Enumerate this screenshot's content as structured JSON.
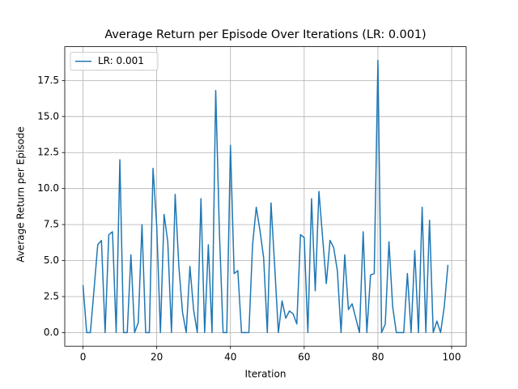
{
  "chart_data": {
    "type": "line",
    "title": "Average Return per Episode Over Iterations (LR: 0.001)",
    "x_label": "Iteration",
    "y_label": "Average Return per Episode",
    "x": [
      0,
      1,
      2,
      3,
      4,
      5,
      6,
      7,
      8,
      9,
      10,
      11,
      12,
      13,
      14,
      15,
      16,
      17,
      18,
      19,
      20,
      21,
      22,
      23,
      24,
      25,
      26,
      27,
      28,
      29,
      30,
      31,
      32,
      33,
      34,
      35,
      36,
      37,
      38,
      39,
      40,
      41,
      42,
      43,
      44,
      45,
      46,
      47,
      48,
      49,
      50,
      51,
      52,
      53,
      54,
      55,
      56,
      57,
      58,
      59,
      60,
      61,
      62,
      63,
      64,
      65,
      66,
      67,
      68,
      69,
      70,
      71,
      72,
      73,
      74,
      75,
      76,
      77,
      78,
      79,
      80,
      81,
      82,
      83,
      84,
      85,
      86,
      87,
      88,
      89,
      90,
      91,
      92,
      93,
      94,
      95,
      96,
      97,
      98,
      99
    ],
    "series": [
      {
        "name": "LR: 0.001",
        "color": "#1f77b4",
        "values": [
          3.3,
          0,
          0,
          3.0,
          6.1,
          6.4,
          0,
          6.8,
          7.0,
          0,
          12.0,
          0,
          0,
          5.4,
          0,
          0.7,
          7.5,
          0,
          0,
          11.4,
          7.4,
          0,
          8.2,
          6.3,
          0,
          9.6,
          4.6,
          1.4,
          0,
          4.6,
          1.6,
          0,
          9.3,
          0,
          6.1,
          0,
          16.8,
          7.0,
          0,
          0,
          13.0,
          4.1,
          4.3,
          0,
          0,
          0,
          6.1,
          8.7,
          7.1,
          5.2,
          0,
          9.0,
          4.6,
          0,
          2.2,
          1.0,
          1.5,
          1.3,
          0.6,
          6.8,
          6.6,
          0,
          9.3,
          2.9,
          9.8,
          6.6,
          3.4,
          6.4,
          5.9,
          4.3,
          0,
          5.4,
          1.6,
          2.0,
          1.0,
          0,
          7.0,
          0,
          4.0,
          4.1,
          18.9,
          0,
          0.6,
          6.3,
          1.8,
          0,
          0,
          0,
          4.1,
          0,
          5.7,
          0,
          8.7,
          0,
          7.8,
          0,
          0.8,
          0,
          1.8,
          4.7
        ]
      }
    ],
    "xlim": [
      -4.95,
      103.95
    ],
    "ylim": [
      -0.945,
      19.85
    ],
    "xticks": [
      0,
      20,
      40,
      60,
      80,
      100
    ],
    "yticks": [
      {
        "value": 0,
        "label": "0.0"
      },
      {
        "value": 2.5,
        "label": "2.5"
      },
      {
        "value": 5,
        "label": "5.0"
      },
      {
        "value": 7.5,
        "label": "7.5"
      },
      {
        "value": 10,
        "label": "10.0"
      },
      {
        "value": 12.5,
        "label": "12.5"
      },
      {
        "value": 15,
        "label": "15.0"
      },
      {
        "value": 17.5,
        "label": "17.5"
      }
    ],
    "grid": true,
    "legend": "upper-left"
  }
}
